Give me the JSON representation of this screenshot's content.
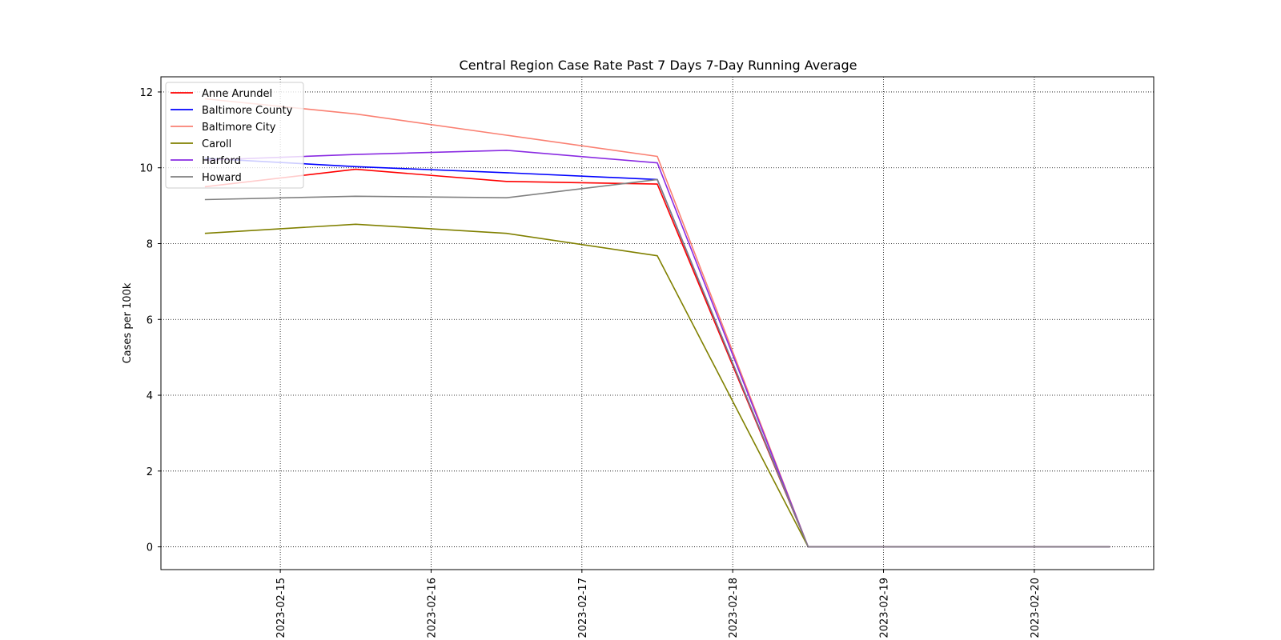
{
  "chart_data": {
    "type": "line",
    "title": "Central Region Case Rate  Past 7 Days 7-Day Running Average",
    "xlabel": "",
    "ylabel": "Cases per 100k",
    "x": [
      "2023-02-14",
      "2023-02-15",
      "2023-02-16",
      "2023-02-17",
      "2023-02-18",
      "2023-02-19",
      "2023-02-20"
    ],
    "xlim": [
      "2023-02-14 05:00",
      "2023-02-20 19:00"
    ],
    "xticks": [
      "2023-02-15",
      "2023-02-16",
      "2023-02-17",
      "2023-02-18",
      "2023-02-19",
      "2023-02-20"
    ],
    "ylim": [
      -0.6,
      12.4
    ],
    "yticks": [
      0,
      2,
      4,
      6,
      8,
      10,
      12
    ],
    "grid": true,
    "legend_position": "top-left",
    "series": [
      {
        "name": "Anne Arundel",
        "color": "#ff0000",
        "values": [
          9.5,
          9.96,
          9.64,
          9.57,
          0,
          0,
          0
        ]
      },
      {
        "name": "Baltimore County",
        "color": "#0000ff",
        "values": [
          10.25,
          10.03,
          9.87,
          9.69,
          0,
          0,
          0
        ]
      },
      {
        "name": "Baltimore City",
        "color": "#fa8072",
        "values": [
          11.82,
          11.42,
          10.86,
          10.3,
          0,
          0,
          0
        ]
      },
      {
        "name": "Caroll",
        "color": "#808000",
        "values": [
          8.27,
          8.51,
          8.27,
          7.68,
          0,
          0,
          0
        ]
      },
      {
        "name": "Harford",
        "color": "#8a2be2",
        "values": [
          10.2,
          10.35,
          10.46,
          10.13,
          0,
          0,
          0
        ]
      },
      {
        "name": "Howard",
        "color": "#808080",
        "values": [
          9.16,
          9.25,
          9.21,
          9.69,
          0,
          0,
          0
        ]
      }
    ]
  }
}
